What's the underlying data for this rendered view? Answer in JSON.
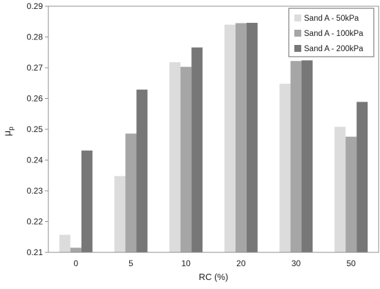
{
  "chart_data": {
    "type": "bar",
    "title": "",
    "xlabel": "RC (%)",
    "ylabel_main": "μ",
    "ylabel_sub": "p",
    "categories": [
      "0",
      "5",
      "10",
      "20",
      "30",
      "50"
    ],
    "ylim": [
      0.21,
      0.29
    ],
    "yticks": [
      "0.21",
      "0.22",
      "0.23",
      "0.24",
      "0.25",
      "0.26",
      "0.27",
      "0.28",
      "0.29"
    ],
    "grid": false,
    "legend_position": "top-right",
    "series": [
      {
        "name": "Sand A - 50kPa",
        "color": "#dcdcdc",
        "values": [
          0.2157,
          0.2348,
          0.2718,
          0.284,
          0.2648,
          0.2508
        ]
      },
      {
        "name": "Sand A - 100kPa",
        "color": "#a6a6a6",
        "values": [
          0.2115,
          0.2486,
          0.2703,
          0.2845,
          0.2722,
          0.2476
        ]
      },
      {
        "name": "Sand A - 200kPa",
        "color": "#777777",
        "values": [
          0.2431,
          0.2629,
          0.2766,
          0.2846,
          0.2724,
          0.2589
        ]
      }
    ]
  }
}
